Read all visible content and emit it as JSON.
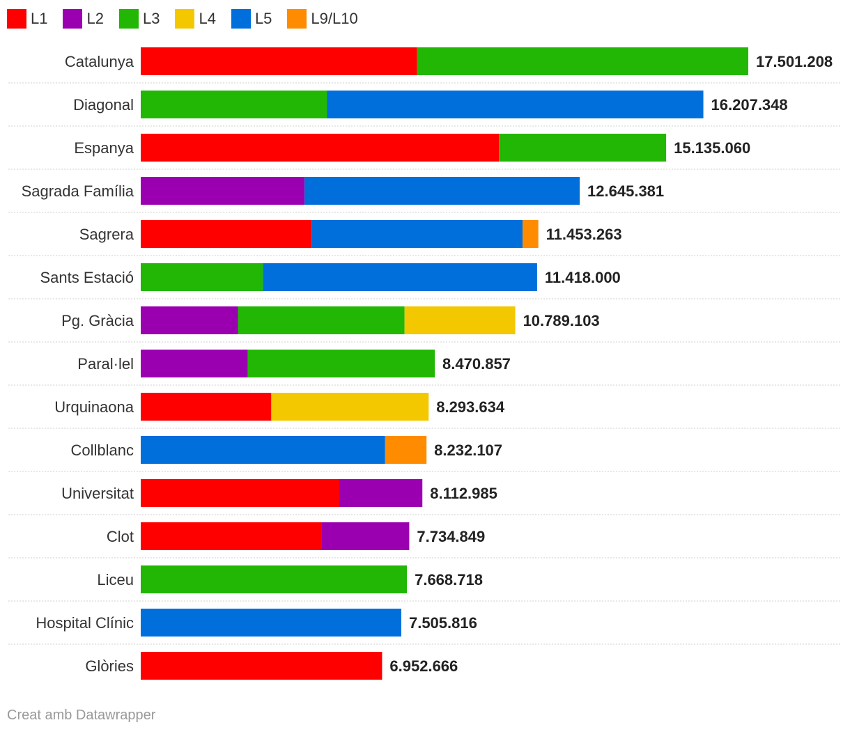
{
  "chart_data": {
    "type": "bar",
    "orientation": "horizontal",
    "stacked": true,
    "xlim": [
      0,
      17501208
    ],
    "grid": false,
    "legend_position": "top-left",
    "series": [
      {
        "name": "L1",
        "color": "#ff0000"
      },
      {
        "name": "L2",
        "color": "#9b00b0"
      },
      {
        "name": "L3",
        "color": "#21b704"
      },
      {
        "name": "L4",
        "color": "#f4c800"
      },
      {
        "name": "L5",
        "color": "#006fdc"
      },
      {
        "name": "L9/L10",
        "color": "#ff8c00"
      }
    ],
    "categories": [
      "Catalunya",
      "Diagonal",
      "Espanya",
      "Sagrada Família",
      "Sagrera",
      "Sants Estació",
      "Pg. Gràcia",
      "Paral·lel",
      "Urquinaona",
      "Collblanc",
      "Universitat",
      "Clot",
      "Liceu",
      "Hospital Clínic",
      "Glòries"
    ],
    "totals": [
      17501208,
      16207348,
      15135060,
      12645381,
      11453263,
      11418000,
      10789103,
      8470857,
      8293634,
      8232107,
      8112985,
      7734849,
      7668718,
      7505816,
      6952666
    ],
    "total_labels": [
      "17.501.208",
      "16.207.348",
      "15.135.060",
      "12.645.381",
      "11.453.263",
      "11.418.000",
      "10.789.103",
      "8.470.857",
      "8.293.634",
      "8.232.107",
      "8.112.985",
      "7.734.849",
      "7.668.718",
      "7.505.816",
      "6.952.666"
    ],
    "segments": [
      [
        {
          "line": "L1",
          "value": 7960000
        },
        {
          "line": "L3",
          "value": 9541208
        }
      ],
      [
        {
          "line": "L3",
          "value": 5360000
        },
        {
          "line": "L5",
          "value": 10847348
        }
      ],
      [
        {
          "line": "L1",
          "value": 10320000
        },
        {
          "line": "L3",
          "value": 4815060
        }
      ],
      [
        {
          "line": "L2",
          "value": 4720000
        },
        {
          "line": "L5",
          "value": 7925381
        }
      ],
      [
        {
          "line": "L1",
          "value": 4920000
        },
        {
          "line": "L5",
          "value": 6080000
        },
        {
          "line": "L9/L10",
          "value": 453263
        }
      ],
      [
        {
          "line": "L3",
          "value": 3520000
        },
        {
          "line": "L5",
          "value": 7898000
        }
      ],
      [
        {
          "line": "L2",
          "value": 2800000
        },
        {
          "line": "L3",
          "value": 4800000
        },
        {
          "line": "L4",
          "value": 3189103
        }
      ],
      [
        {
          "line": "L2",
          "value": 3080000
        },
        {
          "line": "L3",
          "value": 5390857
        }
      ],
      [
        {
          "line": "L1",
          "value": 3760000
        },
        {
          "line": "L4",
          "value": 4533634
        }
      ],
      [
        {
          "line": "L5",
          "value": 7040000
        },
        {
          "line": "L9/L10",
          "value": 1192107
        }
      ],
      [
        {
          "line": "L1",
          "value": 5720000
        },
        {
          "line": "L2",
          "value": 2392985
        }
      ],
      [
        {
          "line": "L1",
          "value": 5200000
        },
        {
          "line": "L2",
          "value": 2534849
        }
      ],
      [
        {
          "line": "L3",
          "value": 7668718
        }
      ],
      [
        {
          "line": "L5",
          "value": 7505816
        }
      ],
      [
        {
          "line": "L1",
          "value": 6952666
        }
      ]
    ]
  },
  "footer": {
    "credit": "Creat amb Datawrapper"
  }
}
